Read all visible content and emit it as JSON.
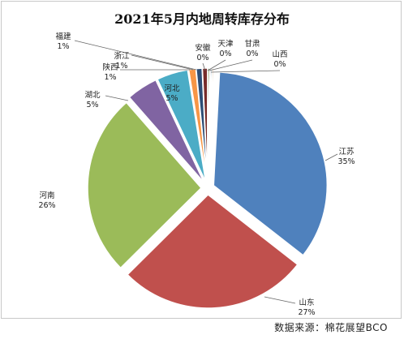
{
  "chart_data": {
    "type": "pie",
    "title": "2021年5月内地周转库存分布",
    "slices": [
      {
        "name": "江苏",
        "value": 35,
        "label": "35%",
        "color": "#4F81BD"
      },
      {
        "name": "山东",
        "value": 27,
        "label": "27%",
        "color": "#C0504D"
      },
      {
        "name": "河南",
        "value": 26,
        "label": "26%",
        "color": "#9BBB59"
      },
      {
        "name": "湖北",
        "value": 5,
        "label": "5%",
        "color": "#8064A2"
      },
      {
        "name": "河北",
        "value": 5,
        "label": "5%",
        "color": "#4BACC6"
      },
      {
        "name": "陕西",
        "value": 1,
        "label": "1%",
        "color": "#F79646"
      },
      {
        "name": "浙江",
        "value": 1,
        "label": "1%",
        "color": "#2C4D75"
      },
      {
        "name": "福建",
        "value": 1,
        "label": "1%",
        "color": "#772C2A"
      },
      {
        "name": "安徽",
        "value": 0,
        "label": "0%",
        "color": "#5F7530"
      },
      {
        "name": "天津",
        "value": 0,
        "label": "0%",
        "color": "#4D3B62"
      },
      {
        "name": "甘肃",
        "value": 0,
        "label": "0%",
        "color": "#276A7C"
      },
      {
        "name": "山西",
        "value": 0,
        "label": "0%",
        "color": "#B65708"
      }
    ],
    "legend": "none"
  },
  "source": "数据来源：棉花展望BCO"
}
